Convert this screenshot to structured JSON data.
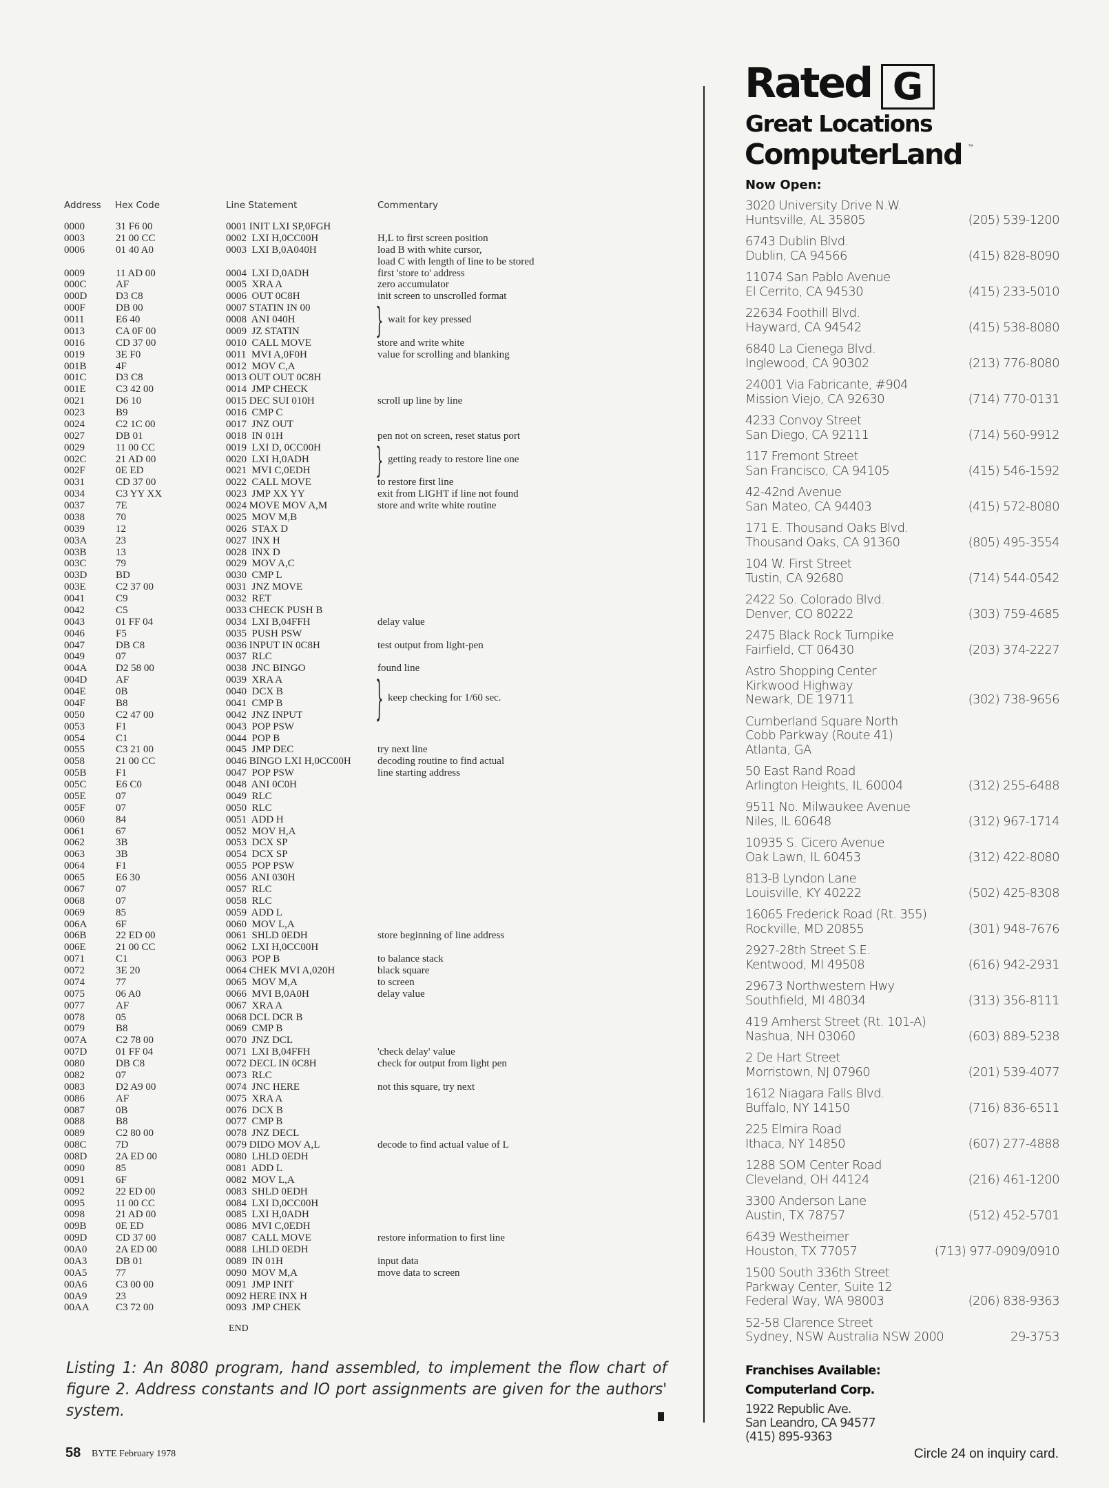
{
  "listing": {
    "headers": {
      "address": "Address",
      "hex": "Hex Code",
      "statement": "Line Statement",
      "commentary": "Commentary"
    },
    "rows": [
      {
        "addr": "0000",
        "hex": "31 F6 00",
        "stmt": "0001 INIT LXI SP,0FGH",
        "comment": ""
      },
      {
        "addr": "0003",
        "hex": "21 00 CC",
        "stmt": "0002  LXI H,0CC00H",
        "comment": "H,L to first screen position"
      },
      {
        "addr": "0006",
        "hex": "01 40 A0",
        "stmt": "0003  LXI B,0A040H",
        "comment": "load B with white cursor,"
      },
      {
        "addr": "",
        "hex": "",
        "stmt": "",
        "comment": "load C with length of line to be stored"
      },
      {
        "addr": "0009",
        "hex": "11 AD 00",
        "stmt": "0004  LXI D,0ADH",
        "comment": "first 'store to' address"
      },
      {
        "addr": "000C",
        "hex": "AF",
        "stmt": "0005  XRA A",
        "comment": "zero accumulator"
      },
      {
        "addr": "000D",
        "hex": "D3 C8",
        "stmt": "0006  OUT 0C8H",
        "comment": "init screen to unscrolled format"
      },
      {
        "addr": "000F",
        "hex": "DB 00",
        "stmt": "0007 STATIN IN 00",
        "comment": "",
        "brace_comment": "wait for key pressed",
        "brace_rows": 3
      },
      {
        "addr": "0011",
        "hex": "E6 40",
        "stmt": "0008  ANI 040H",
        "comment": ""
      },
      {
        "addr": "0013",
        "hex": "CA 0F 00",
        "stmt": "0009  JZ STATIN",
        "comment": ""
      },
      {
        "addr": "0016",
        "hex": "CD 37 00",
        "stmt": "0010  CALL MOVE",
        "comment": "store and write white"
      },
      {
        "addr": "0019",
        "hex": "3E F0",
        "stmt": "0011  MVI A,0F0H",
        "comment": "value for scrolling and blanking"
      },
      {
        "addr": "001B",
        "hex": "4F",
        "stmt": "0012  MOV C,A",
        "comment": ""
      },
      {
        "addr": "001C",
        "hex": "D3 C8",
        "stmt": "0013 OUT OUT 0C8H",
        "comment": ""
      },
      {
        "addr": "001E",
        "hex": "C3 42 00",
        "stmt": "0014  JMP CHECK",
        "comment": ""
      },
      {
        "addr": "0021",
        "hex": "D6 10",
        "stmt": "0015 DEC SUI 010H",
        "comment": "scroll up line by line"
      },
      {
        "addr": "0023",
        "hex": "B9",
        "stmt": "0016  CMP C",
        "comment": ""
      },
      {
        "addr": "0024",
        "hex": "C2 1C 00",
        "stmt": "0017  JNZ OUT",
        "comment": ""
      },
      {
        "addr": "0027",
        "hex": "DB 01",
        "stmt": "0018  IN 01H",
        "comment": "pen not on screen, reset status port"
      },
      {
        "addr": "0029",
        "hex": "11 00 CC",
        "stmt": "0019  LXI D, 0CC00H",
        "comment": "",
        "brace_comment": "getting ready to restore line one",
        "brace_rows": 3
      },
      {
        "addr": "002C",
        "hex": "21 AD 00",
        "stmt": "0020  LXI H,0ADH",
        "comment": ""
      },
      {
        "addr": "002F",
        "hex": "0E ED",
        "stmt": "0021  MVI C,0EDH",
        "comment": ""
      },
      {
        "addr": "0031",
        "hex": "CD 37 00",
        "stmt": "0022  CALL MOVE",
        "comment": "to restore first line"
      },
      {
        "addr": "0034",
        "hex": "C3 YY XX",
        "stmt": "0023  JMP XX YY",
        "comment": "exit from LIGHT if line not found"
      },
      {
        "addr": "0037",
        "hex": "7E",
        "stmt": "0024 MOVE MOV A,M",
        "comment": "store and write white routine"
      },
      {
        "addr": "0038",
        "hex": "70",
        "stmt": "0025  MOV M,B",
        "comment": ""
      },
      {
        "addr": "0039",
        "hex": "12",
        "stmt": "0026  STAX D",
        "comment": ""
      },
      {
        "addr": "003A",
        "hex": "23",
        "stmt": "0027  INX H",
        "comment": ""
      },
      {
        "addr": "003B",
        "hex": "13",
        "stmt": "0028  INX D",
        "comment": ""
      },
      {
        "addr": "003C",
        "hex": "79",
        "stmt": "0029  MOV A,C",
        "comment": ""
      },
      {
        "addr": "003D",
        "hex": "BD",
        "stmt": "0030  CMP L",
        "comment": ""
      },
      {
        "addr": "003E",
        "hex": "C2 37 00",
        "stmt": "0031  JNZ MOVE",
        "comment": ""
      },
      {
        "addr": "0041",
        "hex": "C9",
        "stmt": "0032  RET",
        "comment": ""
      },
      {
        "addr": "0042",
        "hex": "C5",
        "stmt": "0033 CHECK PUSH B",
        "comment": ""
      },
      {
        "addr": "0043",
        "hex": "01 FF 04",
        "stmt": "0034  LXI B,04FFH",
        "comment": "delay value"
      },
      {
        "addr": "0046",
        "hex": "F5",
        "stmt": "0035  PUSH PSW",
        "comment": ""
      },
      {
        "addr": "0047",
        "hex": "DB C8",
        "stmt": "0036 INPUT IN 0C8H",
        "comment": "test output from light-pen"
      },
      {
        "addr": "0049",
        "hex": "07",
        "stmt": "0037  RLC",
        "comment": ""
      },
      {
        "addr": "004A",
        "hex": "D2 58 00",
        "stmt": "0038  JNC BINGO",
        "comment": "found line"
      },
      {
        "addr": "004D",
        "hex": "AF",
        "stmt": "0039  XRA A",
        "comment": "",
        "brace_comment": "keep checking for 1/60 sec.",
        "brace_rows": 4
      },
      {
        "addr": "004E",
        "hex": "0B",
        "stmt": "0040  DCX B",
        "comment": ""
      },
      {
        "addr": "004F",
        "hex": "B8",
        "stmt": "0041  CMP B",
        "comment": ""
      },
      {
        "addr": "0050",
        "hex": "C2 47 00",
        "stmt": "0042  JNZ INPUT",
        "comment": ""
      },
      {
        "addr": "0053",
        "hex": "F1",
        "stmt": "0043  POP PSW",
        "comment": ""
      },
      {
        "addr": "0054",
        "hex": "C1",
        "stmt": "0044  POP B",
        "comment": ""
      },
      {
        "addr": "0055",
        "hex": "C3 21 00",
        "stmt": "0045  JMP DEC",
        "comment": "try next line"
      },
      {
        "addr": "0058",
        "hex": "21 00 CC",
        "stmt": "0046 BINGO LXI H,0CC00H",
        "comment": "decoding routine to find actual"
      },
      {
        "addr": "005B",
        "hex": "F1",
        "stmt": "0047  POP PSW",
        "comment": "line starting address"
      },
      {
        "addr": "005C",
        "hex": "E6 C0",
        "stmt": "0048  ANI 0C0H",
        "comment": ""
      },
      {
        "addr": "005E",
        "hex": "07",
        "stmt": "0049  RLC",
        "comment": ""
      },
      {
        "addr": "005F",
        "hex": "07",
        "stmt": "0050  RLC",
        "comment": ""
      },
      {
        "addr": "0060",
        "hex": "84",
        "stmt": "0051  ADD H",
        "comment": ""
      },
      {
        "addr": "0061",
        "hex": "67",
        "stmt": "0052  MOV H,A",
        "comment": ""
      },
      {
        "addr": "0062",
        "hex": "3B",
        "stmt": "0053  DCX SP",
        "comment": ""
      },
      {
        "addr": "0063",
        "hex": "3B",
        "stmt": "0054  DCX SP",
        "comment": ""
      },
      {
        "addr": "0064",
        "hex": "F1",
        "stmt": "0055  POP PSW",
        "comment": ""
      },
      {
        "addr": "0065",
        "hex": "E6 30",
        "stmt": "0056  ANI 030H",
        "comment": ""
      },
      {
        "addr": "0067",
        "hex": "07",
        "stmt": "0057  RLC",
        "comment": ""
      },
      {
        "addr": "0068",
        "hex": "07",
        "stmt": "0058  RLC",
        "comment": ""
      },
      {
        "addr": "0069",
        "hex": "85",
        "stmt": "0059  ADD L",
        "comment": ""
      },
      {
        "addr": "006A",
        "hex": "6F",
        "stmt": "0060  MOV L,A",
        "comment": ""
      },
      {
        "addr": "006B",
        "hex": "22 ED 00",
        "stmt": "0061  SHLD 0EDH",
        "comment": "store beginning of line address"
      },
      {
        "addr": "006E",
        "hex": "21 00 CC",
        "stmt": "0062  LXI H,0CC00H",
        "comment": ""
      },
      {
        "addr": "0071",
        "hex": "C1",
        "stmt": "0063  POP B",
        "comment": "to balance stack"
      },
      {
        "addr": "0072",
        "hex": "3E 20",
        "stmt": "0064 CHEK MVI A,020H",
        "comment": "black square"
      },
      {
        "addr": "0074",
        "hex": "77",
        "stmt": "0065  MOV M,A",
        "comment": "to screen"
      },
      {
        "addr": "0075",
        "hex": "06 A0",
        "stmt": "0066  MVI B,0A0H",
        "comment": "delay value"
      },
      {
        "addr": "0077",
        "hex": "AF",
        "stmt": "0067  XRA A",
        "comment": ""
      },
      {
        "addr": "0078",
        "hex": "05",
        "stmt": "0068 DCL DCR B",
        "comment": ""
      },
      {
        "addr": "0079",
        "hex": "B8",
        "stmt": "0069  CMP B",
        "comment": ""
      },
      {
        "addr": "007A",
        "hex": "C2 78 00",
        "stmt": "0070  JNZ DCL",
        "comment": ""
      },
      {
        "addr": "007D",
        "hex": "01 FF 04",
        "stmt": "0071  LXI B,04FFH",
        "comment": "'check delay' value"
      },
      {
        "addr": "0080",
        "hex": "DB C8",
        "stmt": "0072 DECL IN 0C8H",
        "comment": "check for output from light pen"
      },
      {
        "addr": "0082",
        "hex": "07",
        "stmt": "0073  RLC",
        "comment": ""
      },
      {
        "addr": "0083",
        "hex": "D2 A9 00",
        "stmt": "0074  JNC HERE",
        "comment": "not this square, try next"
      },
      {
        "addr": "0086",
        "hex": "AF",
        "stmt": "0075  XRA A",
        "comment": ""
      },
      {
        "addr": "0087",
        "hex": "0B",
        "stmt": "0076  DCX B",
        "comment": ""
      },
      {
        "addr": "0088",
        "hex": "B8",
        "stmt": "0077  CMP B",
        "comment": ""
      },
      {
        "addr": "0089",
        "hex": "C2 80 00",
        "stmt": "0078  JNZ DECL",
        "comment": ""
      },
      {
        "addr": "008C",
        "hex": "7D",
        "stmt": "0079 DIDO MOV A,L",
        "comment": "decode to find actual value of L"
      },
      {
        "addr": "008D",
        "hex": "2A ED 00",
        "stmt": "0080  LHLD 0EDH",
        "comment": ""
      },
      {
        "addr": "0090",
        "hex": "85",
        "stmt": "0081  ADD L",
        "comment": ""
      },
      {
        "addr": "0091",
        "hex": "6F",
        "stmt": "0082  MOV L,A",
        "comment": ""
      },
      {
        "addr": "0092",
        "hex": "22 ED 00",
        "stmt": "0083  SHLD 0EDH",
        "comment": ""
      },
      {
        "addr": "0095",
        "hex": "11 00 CC",
        "stmt": "0084  LXI D,0CC00H",
        "comment": ""
      },
      {
        "addr": "0098",
        "hex": "21 AD 00",
        "stmt": "0085  LXI H,0ADH",
        "comment": ""
      },
      {
        "addr": "009B",
        "hex": "0E ED",
        "stmt": "0086  MVI C,0EDH",
        "comment": ""
      },
      {
        "addr": "009D",
        "hex": "CD 37 00",
        "stmt": "0087  CALL MOVE",
        "comment": "restore information to first line"
      },
      {
        "addr": "00A0",
        "hex": "2A ED 00",
        "stmt": "0088  LHLD 0EDH",
        "comment": ""
      },
      {
        "addr": "00A3",
        "hex": "DB 01",
        "stmt": "0089  IN 01H",
        "comment": "input data"
      },
      {
        "addr": "00A5",
        "hex": "77",
        "stmt": "0090  MOV M,A",
        "comment": "move data to screen"
      },
      {
        "addr": "00A6",
        "hex": "C3 00 00",
        "stmt": "0091  JMP INIT",
        "comment": ""
      },
      {
        "addr": "00A9",
        "hex": "23",
        "stmt": "0092 HERE INX H",
        "comment": ""
      },
      {
        "addr": "00AA",
        "hex": "C3 72 00",
        "stmt": "0093  JMP CHEK",
        "comment": ""
      }
    ],
    "end": "END",
    "caption": "Listing 1: An 8080 program, hand assembled, to implement the flow chart of figure 2. Address constants and IO port assignments are given for the authors' system."
  },
  "footer": {
    "page_number": "58",
    "magazine": "BYTE February 1978",
    "inquiry": "Circle 24 on inquiry card."
  },
  "ad": {
    "rated": "Rated",
    "rating": "G",
    "tagline": "Great Locations",
    "brand": "ComputerLand",
    "trademark": "™",
    "now_open": "Now Open:",
    "stores": [
      {
        "lines": [
          "3020 University Drive N.W.",
          "Huntsville, AL 35805"
        ],
        "phone": "(205) 539-1200"
      },
      {
        "lines": [
          "6743 Dublin Blvd.",
          "Dublin, CA 94566"
        ],
        "phone": "(415) 828-8090"
      },
      {
        "lines": [
          "11074 San Pablo Avenue",
          "El Cerrito, CA 94530"
        ],
        "phone": "(415) 233-5010"
      },
      {
        "lines": [
          "22634 Foothill Blvd.",
          "Hayward, CA 94542"
        ],
        "phone": "(415) 538-8080"
      },
      {
        "lines": [
          "6840 La Cienega Blvd.",
          "Inglewood, CA 90302"
        ],
        "phone": "(213) 776-8080"
      },
      {
        "lines": [
          "24001 Via Fabricante, #904",
          "Mission Viejo, CA 92630"
        ],
        "phone": "(714) 770-0131"
      },
      {
        "lines": [
          "4233 Convoy Street",
          "San Diego, CA 92111"
        ],
        "phone": "(714) 560-9912"
      },
      {
        "lines": [
          "117 Fremont Street",
          "San Francisco, CA 94105"
        ],
        "phone": "(415) 546-1592"
      },
      {
        "lines": [
          "42-42nd Avenue",
          "San Mateo, CA 94403"
        ],
        "phone": "(415) 572-8080"
      },
      {
        "lines": [
          "171 E. Thousand Oaks Blvd.",
          "Thousand Oaks, CA 91360"
        ],
        "phone": "(805) 495-3554"
      },
      {
        "lines": [
          "104 W. First Street",
          "Tustin, CA 92680"
        ],
        "phone": "(714) 544-0542"
      },
      {
        "lines": [
          "2422 So. Colorado Blvd.",
          "Denver, CO 80222"
        ],
        "phone": "(303) 759-4685"
      },
      {
        "lines": [
          "2475 Black Rock Turnpike",
          "Fairfield, CT 06430"
        ],
        "phone": "(203) 374-2227"
      },
      {
        "lines": [
          "Astro Shopping Center",
          "Kirkwood Highway",
          "Newark, DE 19711"
        ],
        "phone": "(302) 738-9656"
      },
      {
        "lines": [
          "Cumberland Square North",
          "Cobb Parkway (Route 41)",
          "Atlanta, GA"
        ],
        "phone": ""
      },
      {
        "lines": [
          "50 East Rand Road",
          "Arlington Heights, IL 60004"
        ],
        "phone": "(312) 255-6488"
      },
      {
        "lines": [
          "9511 No. Milwaukee Avenue",
          "Niles, IL 60648"
        ],
        "phone": "(312) 967-1714"
      },
      {
        "lines": [
          "10935 S. Cicero Avenue",
          "Oak Lawn, IL 60453"
        ],
        "phone": "(312) 422-8080"
      },
      {
        "lines": [
          "813-B Lyndon Lane",
          "Louisville, KY 40222"
        ],
        "phone": "(502) 425-8308"
      },
      {
        "lines": [
          "16065 Frederick Road (Rt. 355)",
          "Rockville, MD 20855"
        ],
        "phone": "(301) 948-7676"
      },
      {
        "lines": [
          "2927-28th Street S.E.",
          "Kentwood, MI 49508"
        ],
        "phone": "(616) 942-2931"
      },
      {
        "lines": [
          "29673 Northwestern Hwy",
          "Southfield, MI 48034"
        ],
        "phone": "(313) 356-8111"
      },
      {
        "lines": [
          "419 Amherst Street (Rt. 101-A)",
          "Nashua, NH 03060"
        ],
        "phone": "(603) 889-5238"
      },
      {
        "lines": [
          "2 De Hart Street",
          "Morristown, NJ 07960"
        ],
        "phone": "(201) 539-4077"
      },
      {
        "lines": [
          "1612 Niagara Falls Blvd.",
          "Buffalo, NY 14150"
        ],
        "phone": "(716) 836-6511"
      },
      {
        "lines": [
          "225 Elmira Road",
          "Ithaca, NY 14850"
        ],
        "phone": "(607) 277-4888"
      },
      {
        "lines": [
          "1288 SOM Center Road",
          "Cleveland, OH 44124"
        ],
        "phone": "(216) 461-1200"
      },
      {
        "lines": [
          "3300 Anderson Lane",
          "Austin, TX 78757"
        ],
        "phone": "(512) 452-5701"
      },
      {
        "lines": [
          "6439 Westheimer",
          "Houston, TX 77057"
        ],
        "phone": "(713) 977-0909/0910"
      },
      {
        "lines": [
          "1500 South 336th Street",
          "Parkway Center, Suite 12",
          "Federal Way, WA 98003"
        ],
        "phone": "(206) 838-9363"
      },
      {
        "lines": [
          "52-58 Clarence Street",
          "Sydney, NSW Australia NSW 2000"
        ],
        "phone": "29-3753"
      }
    ],
    "franchise": {
      "heading": "Franchises Available:",
      "company": "Computerland Corp.",
      "address_lines": [
        "1922 Republic Ave.",
        "San Leandro, CA 94577",
        "(415) 895-9363"
      ]
    }
  }
}
